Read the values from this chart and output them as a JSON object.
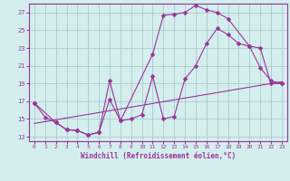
{
  "xlabel": "Windchill (Refroidissement éolien,°C)",
  "bg_color": "#d4eeed",
  "line_color": "#993399",
  "grid_color": "#aacccc",
  "xlim": [
    -0.5,
    23.5
  ],
  "ylim": [
    12.5,
    28.0
  ],
  "yticks": [
    13,
    15,
    17,
    19,
    21,
    23,
    25,
    27
  ],
  "xticks": [
    0,
    1,
    2,
    3,
    4,
    5,
    6,
    7,
    8,
    9,
    10,
    11,
    12,
    13,
    14,
    15,
    16,
    17,
    18,
    19,
    20,
    21,
    22,
    23
  ],
  "line1_x": [
    0,
    1,
    2,
    3,
    4,
    5,
    6,
    7,
    8,
    11,
    12,
    13,
    14,
    15,
    16,
    17,
    18,
    20,
    21,
    22,
    23
  ],
  "line1_y": [
    16.8,
    15.2,
    14.6,
    13.8,
    13.7,
    13.2,
    13.5,
    17.2,
    14.8,
    22.3,
    26.7,
    26.8,
    27.0,
    27.8,
    27.3,
    27.0,
    26.3,
    23.2,
    20.8,
    19.3,
    19.0
  ],
  "line2_x": [
    0,
    2,
    3,
    4,
    5,
    6,
    7,
    8,
    9,
    10,
    11,
    12,
    13,
    14,
    15,
    16,
    17,
    18,
    19,
    20,
    21,
    22,
    23
  ],
  "line2_y": [
    16.8,
    14.6,
    13.8,
    13.7,
    13.2,
    13.5,
    19.3,
    14.8,
    15.0,
    15.5,
    19.8,
    15.0,
    15.3,
    19.5,
    21.0,
    23.5,
    25.2,
    24.5,
    23.5,
    23.2,
    23.0,
    19.0,
    19.0
  ],
  "line3_x": [
    0,
    23
  ],
  "line3_y": [
    14.5,
    19.2
  ]
}
